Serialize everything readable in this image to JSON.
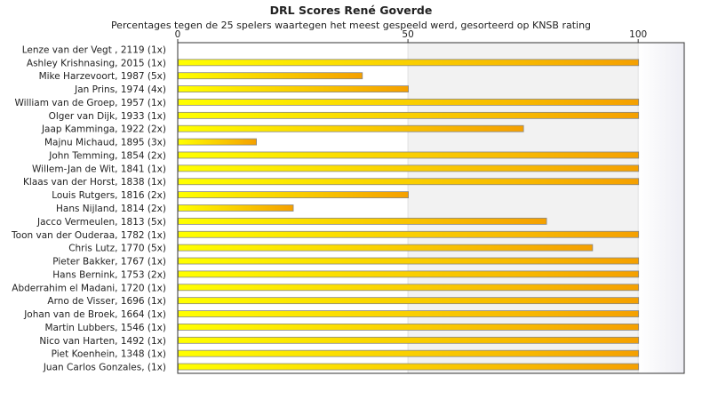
{
  "chart_data": {
    "type": "bar",
    "orientation": "horizontal",
    "title": "DRL Scores René Goverde",
    "subtitle": "Percentages tegen de 25 spelers waartegen het meest gespeeld werd, gesorteerd op KNSB rating",
    "categories": [
      "Lenze van der Vegt , 2119 (1x)",
      "Ashley Krishnasing, 2015 (1x)",
      "Mike Harzevoort, 1987 (5x)",
      "Jan Prins, 1974 (4x)",
      "William van de Groep, 1957 (1x)",
      "Olger van Dijk, 1933 (1x)",
      "Jaap Kamminga, 1922 (2x)",
      "Majnu Michaud, 1895 (3x)",
      "John Temming, 1854 (2x)",
      "Willem-Jan de Wit, 1841 (1x)",
      "Klaas van der Horst, 1838 (1x)",
      "Louis Rutgers, 1816 (2x)",
      "Hans Nijland, 1814 (2x)",
      "Jacco Vermeulen, 1813 (5x)",
      "Toon van der Ouderaa, 1782 (1x)",
      "Chris Lutz, 1770 (5x)",
      "Pieter Bakker, 1767 (1x)",
      "Hans Bernink, 1753 (2x)",
      "Abderrahim el Madani, 1720 (1x)",
      "Arno de Visser, 1696 (1x)",
      "Johan van de Broek, 1664 (1x)",
      "Martin Lubbers, 1546 (1x)",
      "Nico van Harten, 1492 (1x)",
      "Piet Koenhein, 1348 (1x)",
      "Juan Carlos Gonzales,  (1x)"
    ],
    "values": [
      0,
      100,
      40,
      50,
      100,
      100,
      75,
      17,
      100,
      100,
      100,
      50,
      25,
      80,
      100,
      90,
      100,
      100,
      100,
      100,
      100,
      100,
      100,
      100,
      100
    ],
    "xlim": [
      0,
      110
    ],
    "xticks": [
      0,
      50,
      100
    ],
    "xtick_labels": [
      "0",
      "50",
      "100"
    ],
    "xaxis_position": "top",
    "grid": true,
    "colors": {
      "bar_start": "#ffff00",
      "bar_end": "#f5a000",
      "bar_border": "#888888",
      "band_light": "#ffffff",
      "band_shaded": "#f2f2f2",
      "band_end": "#f6f6fa"
    }
  }
}
